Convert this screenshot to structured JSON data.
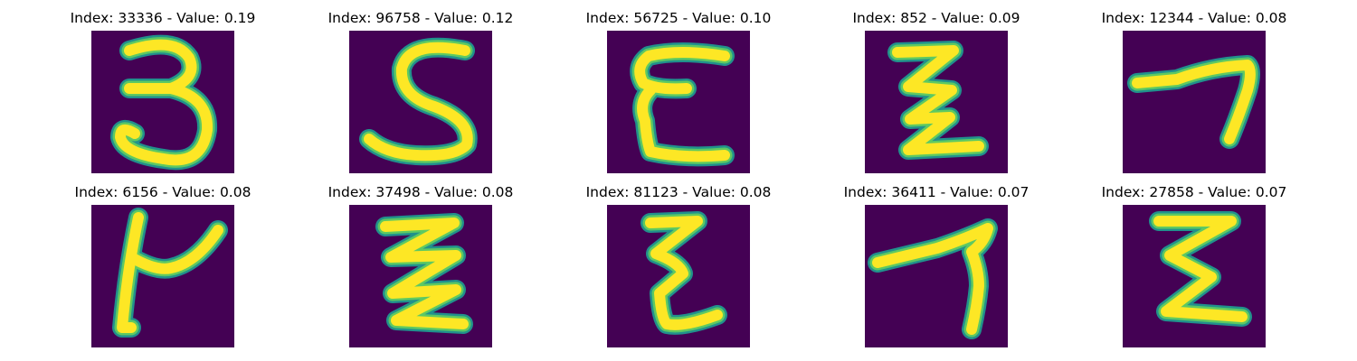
{
  "colors": {
    "background": "#440154",
    "mid": "#21918c",
    "edge": "#5ec962",
    "stroke": "#fde725"
  },
  "panels": [
    {
      "title": "Index: 33336 - Value: 0.19",
      "glyph": "three"
    },
    {
      "title": "Index: 96758 - Value: 0.12",
      "glyph": "five"
    },
    {
      "title": "Index: 56725 - Value: 0.10",
      "glyph": "epsilon"
    },
    {
      "title": "Index: 852 - Value: 0.09",
      "glyph": "zigzag-z"
    },
    {
      "title": "Index: 12344 - Value: 0.08",
      "glyph": "seven"
    },
    {
      "title": "Index: 6156 - Value: 0.08",
      "glyph": "k-shape"
    },
    {
      "title": "Index: 37498 - Value: 0.08",
      "glyph": "triple-z"
    },
    {
      "title": "Index: 81123 - Value: 0.08",
      "glyph": "zigzag-e"
    },
    {
      "title": "Index: 36411 - Value: 0.07",
      "glyph": "seven-long"
    },
    {
      "title": "Index: 27858 - Value: 0.07",
      "glyph": "sigma"
    }
  ]
}
